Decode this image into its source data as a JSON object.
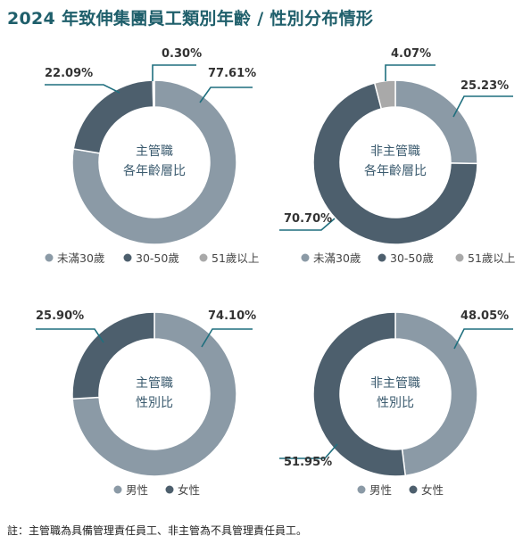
{
  "title": "2024 年致伸集團員工類別年齡 / 性別分布情形",
  "footnote": "註：主管職為具備管理責任員工、非主管為不具管理責任員工。",
  "colors": {
    "light": "#8b9aa6",
    "dark": "#4d5f6d",
    "pale": "#a9a9a9",
    "leader": "#1f6f7e",
    "title": "#1f5f6b"
  },
  "chart_data": [
    {
      "type": "pie",
      "center_label": [
        "主管職",
        "各年齡層比"
      ],
      "slices": [
        {
          "name": "未滿30歲",
          "value": 77.61,
          "label": "77.61%",
          "color": "#8b9aa6"
        },
        {
          "name": "30-50歲",
          "value": 22.09,
          "label": "22.09%",
          "color": "#4d5f6d"
        },
        {
          "name": "51歲以上",
          "value": 0.3,
          "label": "0.30%",
          "color": "#a9a9a9"
        }
      ],
      "legend": [
        "未滿30歲",
        "30-50歲",
        "51歲以上"
      ]
    },
    {
      "type": "pie",
      "center_label": [
        "非主管職",
        "各年齡層比"
      ],
      "slices": [
        {
          "name": "未滿30歲",
          "value": 25.23,
          "label": "25.23%",
          "color": "#8b9aa6"
        },
        {
          "name": "30-50歲",
          "value": 70.7,
          "label": "70.70%",
          "color": "#4d5f6d"
        },
        {
          "name": "51歲以上",
          "value": 4.07,
          "label": "4.07%",
          "color": "#a9a9a9"
        }
      ],
      "legend": [
        "未滿30歲",
        "30-50歲",
        "51歲以上"
      ]
    },
    {
      "type": "pie",
      "center_label": [
        "主管職",
        "性別比"
      ],
      "slices": [
        {
          "name": "男性",
          "value": 74.1,
          "label": "74.10%",
          "color": "#8b9aa6"
        },
        {
          "name": "女性",
          "value": 25.9,
          "label": "25.90%",
          "color": "#4d5f6d"
        }
      ],
      "legend": [
        "男性",
        "女性"
      ]
    },
    {
      "type": "pie",
      "center_label": [
        "非主管職",
        "性別比"
      ],
      "slices": [
        {
          "name": "男性",
          "value": 48.05,
          "label": "48.05%",
          "color": "#8b9aa6"
        },
        {
          "name": "女性",
          "value": 51.95,
          "label": "51.95%",
          "color": "#4d5f6d"
        }
      ],
      "legend": [
        "男性",
        "女性"
      ]
    }
  ]
}
